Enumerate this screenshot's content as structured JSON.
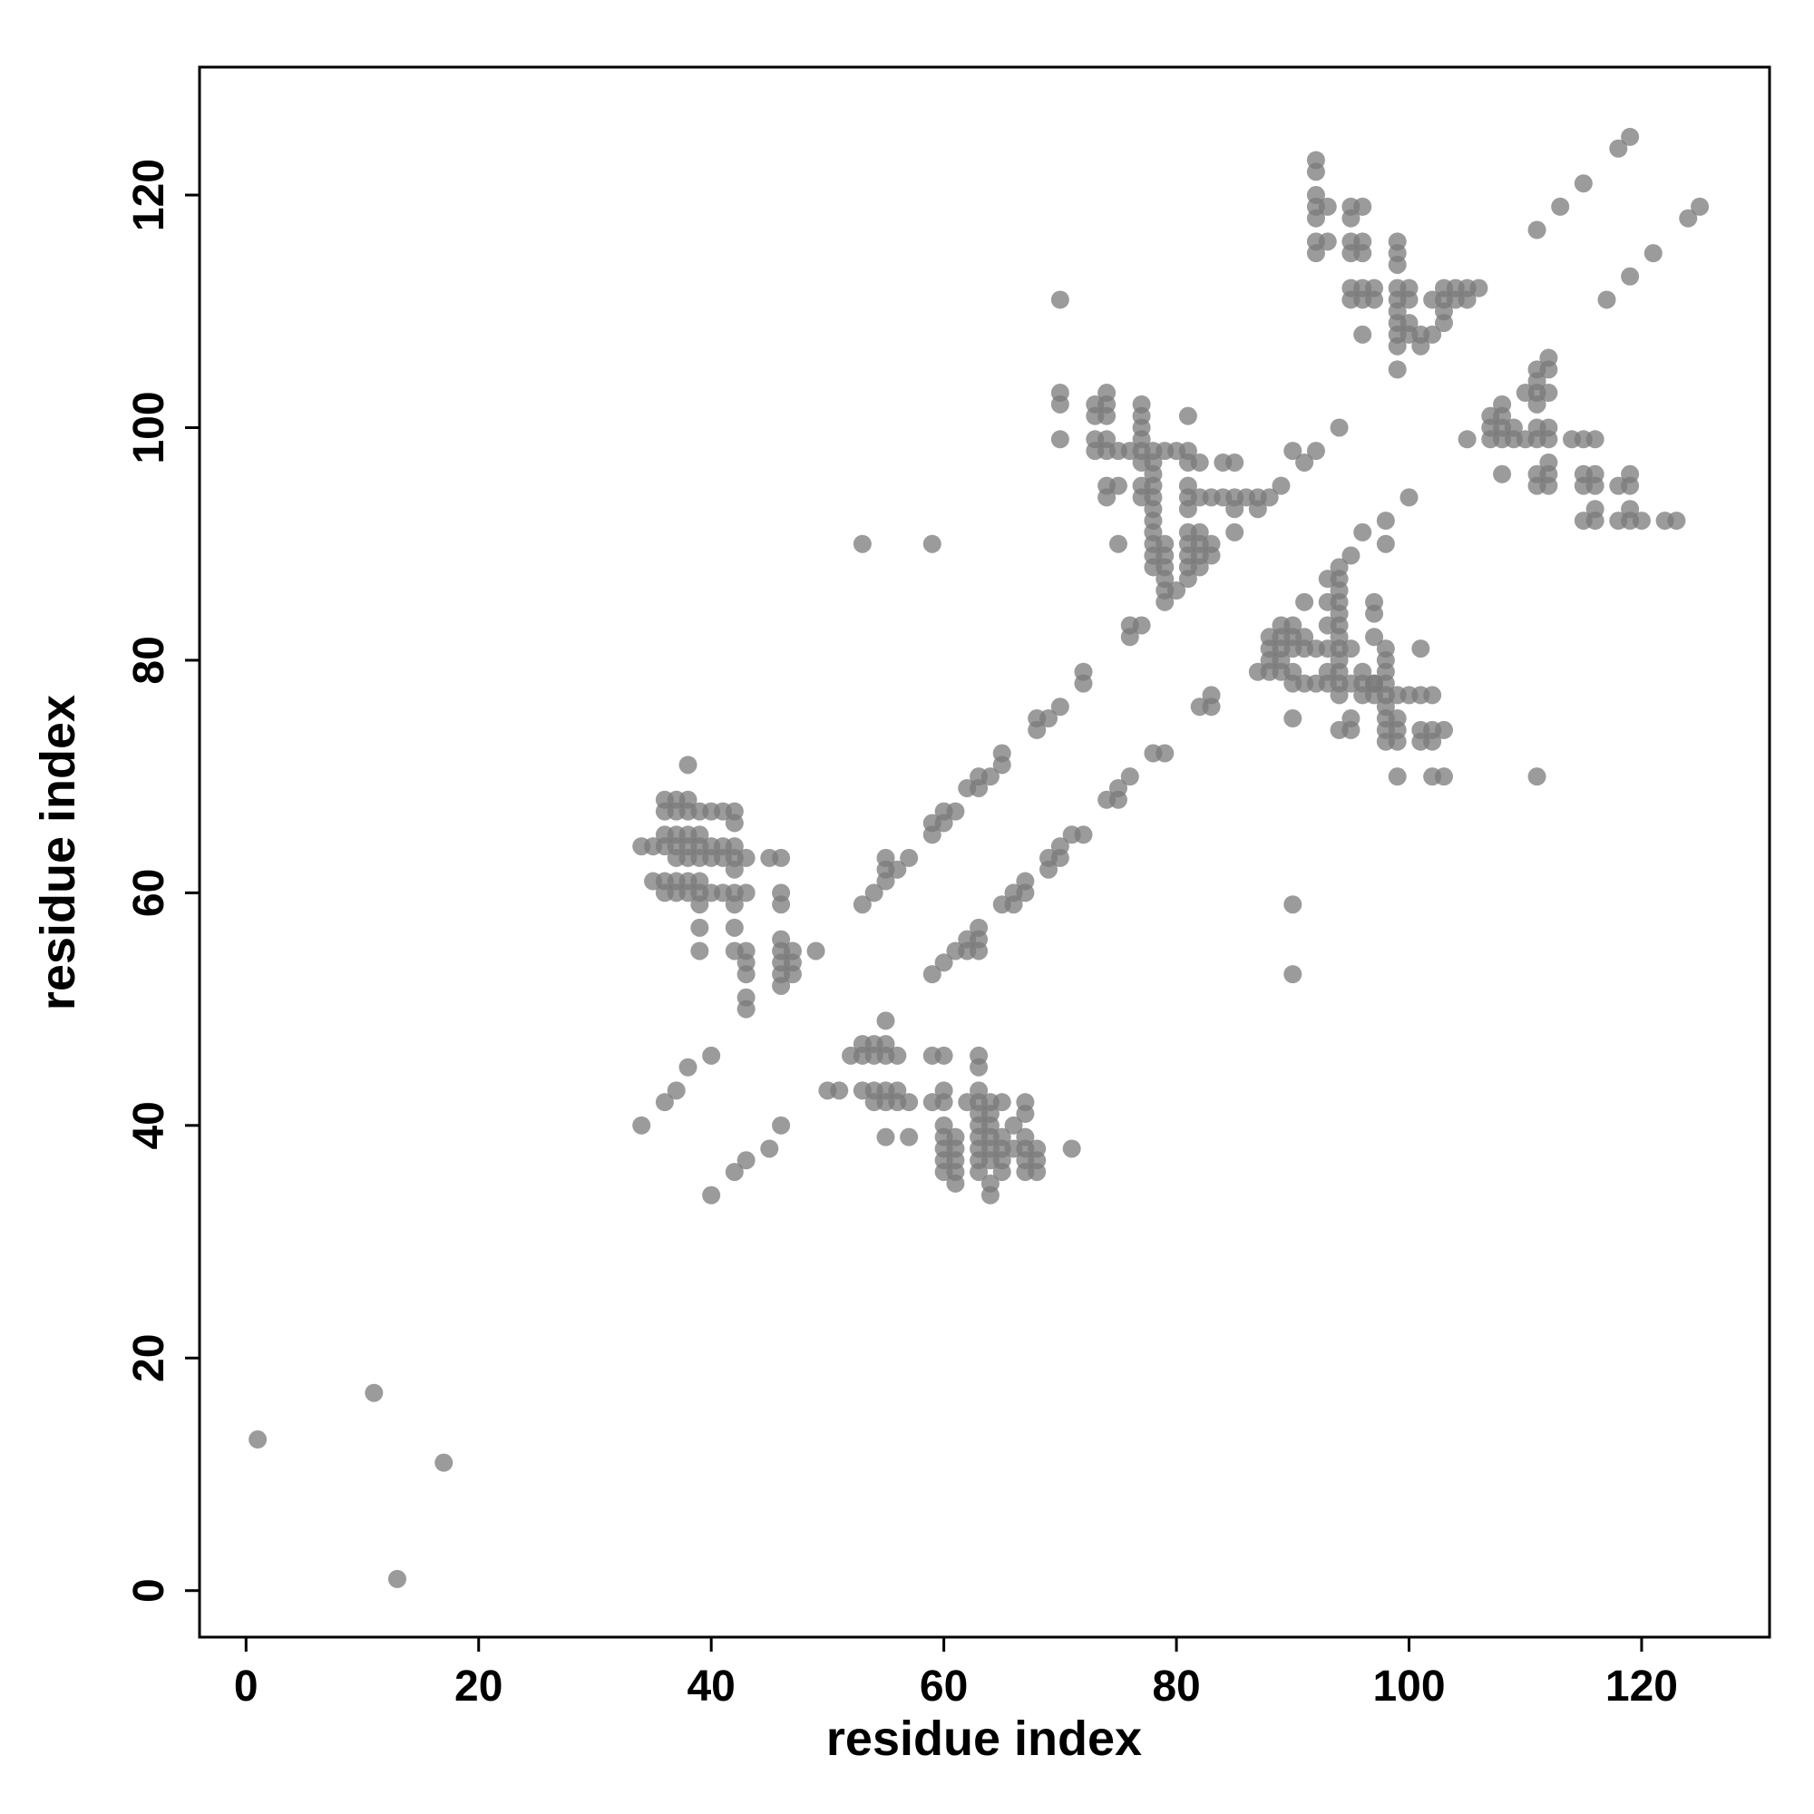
{
  "chart_data": {
    "type": "scatter",
    "xlabel": "residue index",
    "ylabel": "residue index",
    "xlim": [
      -4,
      131
    ],
    "ylim": [
      -4,
      131
    ],
    "xticks": [
      0,
      20,
      40,
      60,
      80,
      100,
      120
    ],
    "yticks": [
      0,
      20,
      40,
      60,
      80,
      100,
      120
    ],
    "grid": false,
    "series": [
      {
        "color": "#7a7a7a",
        "alpha": 0.75,
        "x": [
          1,
          11,
          13,
          17,
          34,
          36,
          37,
          38,
          40,
          40,
          42,
          43,
          45,
          46,
          34,
          35,
          36,
          37,
          38,
          39,
          40,
          41,
          42,
          36,
          37,
          38,
          36,
          37,
          38,
          39,
          40,
          41,
          42,
          42,
          36,
          37,
          38,
          39,
          35,
          36,
          37,
          38,
          39,
          36,
          37,
          38,
          39,
          40,
          41,
          42,
          43,
          37,
          38,
          39,
          40,
          41,
          42,
          43,
          38,
          39,
          39,
          39,
          42,
          42,
          42,
          43,
          43,
          43,
          43,
          43,
          42,
          45,
          46,
          46,
          46,
          46,
          46,
          46,
          46,
          46,
          47,
          47,
          47,
          49,
          53,
          54,
          55,
          55,
          55,
          56,
          57,
          59,
          59,
          60,
          60,
          61,
          62,
          63,
          63,
          64,
          65,
          65,
          68,
          68,
          69,
          70,
          72,
          72,
          76,
          76,
          77,
          59,
          60,
          61,
          62,
          62,
          63,
          63,
          63,
          65,
          66,
          66,
          67,
          67,
          69,
          69,
          70,
          70,
          71,
          72,
          74,
          75,
          75,
          76,
          78,
          79,
          82,
          83,
          83,
          50,
          51,
          52,
          53,
          53,
          54,
          54,
          55,
          55,
          55,
          56,
          53,
          54,
          54,
          55,
          55,
          56,
          56,
          57,
          55,
          57,
          59,
          60,
          59,
          60,
          60,
          60,
          60,
          60,
          60,
          60,
          61,
          61,
          61,
          61,
          61,
          62,
          63,
          63,
          63,
          63,
          63,
          63,
          63,
          63,
          63,
          63,
          64,
          64,
          64,
          64,
          64,
          64,
          64,
          64,
          65,
          65,
          65,
          65,
          65,
          66,
          66,
          67,
          67,
          67,
          67,
          67,
          67,
          68,
          68,
          68,
          71,
          53,
          59,
          90,
          90,
          70,
          111,
          70,
          70,
          70,
          73,
          74,
          74,
          73,
          74,
          73,
          74,
          73,
          74,
          75,
          76,
          77,
          78,
          79,
          80,
          81,
          74,
          75,
          74,
          75,
          77,
          77,
          77,
          77,
          77,
          77,
          77,
          78,
          78,
          78,
          78,
          78,
          78,
          78,
          78,
          78,
          78,
          79,
          79,
          79,
          79,
          79,
          79,
          80,
          81,
          81,
          81,
          81,
          82,
          83,
          84,
          85,
          86,
          87,
          88,
          81,
          81,
          81,
          81,
          81,
          81,
          82,
          82,
          82,
          82,
          83,
          83,
          82,
          84,
          85,
          85,
          85,
          87,
          89,
          90,
          91,
          92,
          94,
          95,
          96,
          98,
          100,
          98,
          87,
          88,
          89,
          88,
          89,
          88,
          89,
          90,
          91,
          92,
          88,
          89,
          90,
          91,
          89,
          90,
          90,
          90,
          91,
          92,
          93,
          94,
          95,
          96,
          97,
          90,
          91,
          93,
          93,
          93,
          93,
          93,
          94,
          94,
          94,
          94,
          94,
          94,
          94,
          94,
          94,
          94,
          94,
          94,
          95,
          95,
          95,
          96,
          96,
          97,
          97,
          97,
          97,
          97,
          98,
          98,
          98,
          98,
          98,
          98,
          98,
          98,
          98,
          99,
          99,
          99,
          99,
          99,
          100,
          101,
          101,
          101,
          101,
          102,
          102,
          102,
          102,
          103,
          103,
          92,
          92,
          92,
          92,
          92,
          92,
          92,
          93,
          93,
          95,
          95,
          95,
          95,
          95,
          95,
          96,
          96,
          96,
          96,
          96,
          96,
          97,
          97,
          99,
          99,
          99,
          99,
          99,
          99,
          99,
          99,
          99,
          99,
          100,
          100,
          100,
          100,
          101,
          101,
          102,
          102,
          103,
          103,
          103,
          103,
          104,
          104,
          105,
          105,
          106,
          111,
          113,
          115,
          118,
          119,
          117,
          119,
          121,
          124,
          125,
          105,
          107,
          107,
          107,
          108,
          108,
          108,
          108,
          108,
          109,
          109,
          110,
          110,
          111,
          111,
          111,
          111,
          111,
          111,
          111,
          111,
          112,
          112,
          112,
          112,
          112,
          112,
          112,
          112,
          114,
          115,
          116,
          115,
          115,
          115,
          116,
          116,
          116,
          116,
          118,
          118,
          119,
          119,
          119,
          119,
          120,
          122,
          123
        ],
        "y": [
          13,
          17,
          1,
          11,
          40,
          42,
          43,
          45,
          46,
          34,
          36,
          37,
          38,
          40,
          64,
          64,
          64,
          64,
          64,
          64,
          64,
          64,
          64,
          68,
          68,
          68,
          67,
          67,
          67,
          67,
          67,
          67,
          67,
          66,
          65,
          65,
          65,
          65,
          61,
          61,
          61,
          61,
          61,
          60,
          60,
          60,
          60,
          60,
          60,
          60,
          60,
          63,
          63,
          63,
          63,
          63,
          63,
          63,
          71,
          59,
          57,
          55,
          59,
          57,
          55,
          55,
          54,
          53,
          51,
          50,
          62,
          63,
          63,
          60,
          59,
          56,
          55,
          54,
          53,
          52,
          55,
          54,
          53,
          55,
          59,
          60,
          61,
          62,
          63,
          62,
          63,
          65,
          66,
          66,
          67,
          67,
          69,
          69,
          70,
          70,
          71,
          72,
          74,
          75,
          75,
          76,
          78,
          79,
          82,
          83,
          83,
          53,
          54,
          55,
          55,
          56,
          55,
          56,
          57,
          59,
          59,
          60,
          60,
          61,
          62,
          63,
          63,
          64,
          65,
          65,
          68,
          68,
          69,
          70,
          72,
          72,
          76,
          76,
          77,
          43,
          43,
          46,
          46,
          47,
          46,
          47,
          46,
          47,
          49,
          46,
          43,
          42,
          43,
          42,
          43,
          43,
          42,
          42,
          39,
          39,
          46,
          46,
          42,
          43,
          42,
          40,
          39,
          38,
          37,
          36,
          39,
          38,
          37,
          36,
          35,
          42,
          46,
          45,
          43,
          42,
          41,
          40,
          39,
          38,
          37,
          36,
          42,
          41,
          40,
          39,
          38,
          37,
          35,
          34,
          42,
          39,
          38,
          37,
          36,
          40,
          38,
          42,
          41,
          39,
          38,
          37,
          36,
          38,
          37,
          36,
          38,
          90,
          90,
          59,
          53,
          111,
          70,
          103,
          102,
          99,
          102,
          102,
          103,
          101,
          101,
          99,
          99,
          98,
          98,
          98,
          98,
          98,
          98,
          98,
          98,
          98,
          95,
          95,
          94,
          90,
          102,
          101,
          100,
          99,
          97,
          95,
          94,
          97,
          96,
          95,
          94,
          93,
          92,
          91,
          90,
          89,
          88,
          90,
          89,
          88,
          87,
          86,
          85,
          86,
          101,
          97,
          95,
          94,
          94,
          94,
          94,
          94,
          94,
          94,
          94,
          93,
          91,
          90,
          89,
          88,
          87,
          91,
          90,
          89,
          88,
          90,
          89,
          97,
          97,
          97,
          93,
          91,
          93,
          95,
          98,
          97,
          98,
          100,
          89,
          91,
          92,
          94,
          90,
          79,
          79,
          79,
          80,
          80,
          81,
          81,
          81,
          81,
          81,
          82,
          82,
          82,
          82,
          83,
          83,
          79,
          78,
          78,
          78,
          78,
          78,
          78,
          78,
          78,
          75,
          85,
          87,
          85,
          83,
          81,
          79,
          88,
          87,
          86,
          85,
          84,
          83,
          82,
          81,
          80,
          79,
          77,
          74,
          75,
          74,
          81,
          79,
          77,
          85,
          84,
          82,
          78,
          77,
          81,
          80,
          79,
          78,
          77,
          76,
          75,
          74,
          73,
          77,
          75,
          74,
          73,
          70,
          77,
          81,
          77,
          74,
          73,
          77,
          74,
          73,
          70,
          74,
          70,
          123,
          122,
          120,
          119,
          118,
          116,
          115,
          119,
          116,
          119,
          118,
          116,
          115,
          112,
          111,
          119,
          116,
          115,
          112,
          111,
          108,
          112,
          111,
          116,
          115,
          114,
          112,
          111,
          110,
          109,
          108,
          107,
          105,
          112,
          111,
          109,
          108,
          108,
          107,
          111,
          108,
          112,
          111,
          110,
          109,
          112,
          111,
          111,
          112,
          112,
          117,
          119,
          121,
          124,
          125,
          111,
          113,
          115,
          118,
          119,
          99,
          101,
          100,
          99,
          101,
          100,
          99,
          102,
          96,
          100,
          99,
          103,
          99,
          105,
          104,
          103,
          102,
          100,
          99,
          96,
          95,
          106,
          105,
          103,
          100,
          99,
          97,
          96,
          95,
          99,
          99,
          99,
          96,
          95,
          92,
          96,
          95,
          93,
          92,
          95,
          92,
          96,
          95,
          93,
          92,
          92,
          92,
          92
        ]
      }
    ]
  }
}
